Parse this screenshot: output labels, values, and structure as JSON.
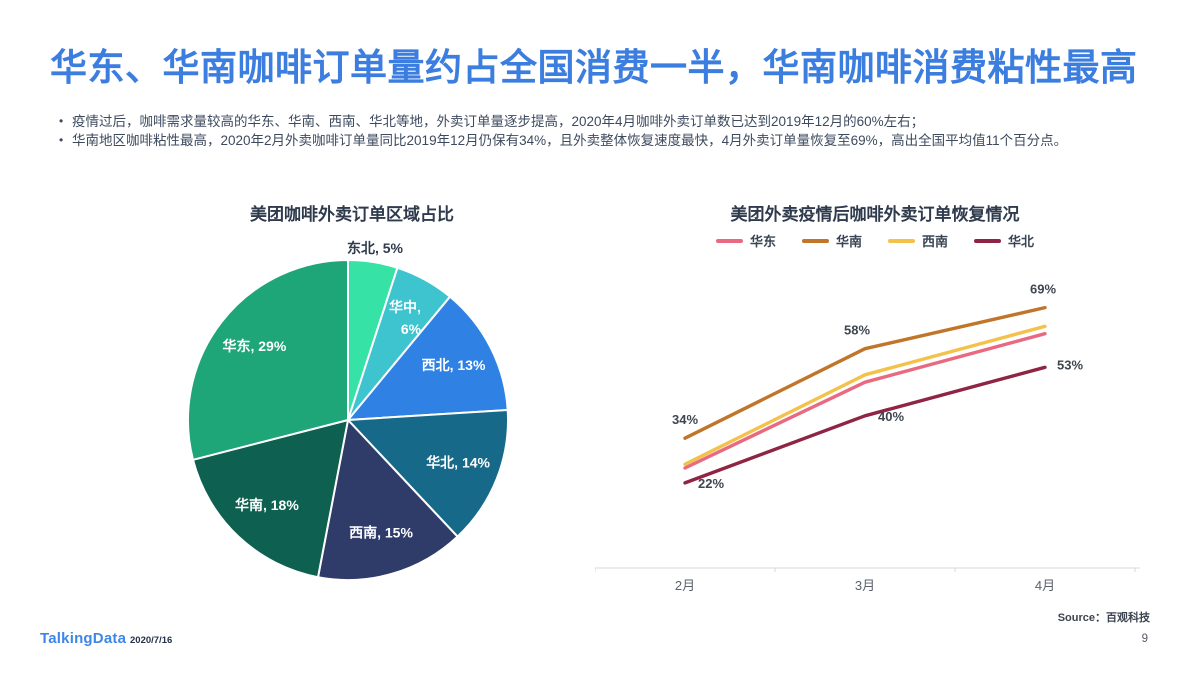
{
  "slide": {
    "title": "华东、华南咖啡订单量约占全国消费一半，华南咖啡消费粘性最高",
    "title_color": "#3C7EDF",
    "bullets": [
      "疫情过后，咖啡需求量较高的华东、华南、西南、华北等地，外卖订单量逐步提高，2020年4月咖啡外卖订单数已达到2019年12月的60%左右；",
      "华南地区咖啡粘性最高，2020年2月外卖咖啡订单量同比2019年12月仍保有34%，且外卖整体恢复速度最快，4月外卖订单量恢复至69%，高出全国平均值11个百分点。"
    ],
    "footer": {
      "logo": "TalkingData",
      "date": "2020/7/16",
      "source": "Source：百观科技",
      "page": "9"
    }
  },
  "chart_data": [
    {
      "type": "pie",
      "title": "美团咖啡外卖订单区域占比",
      "start_angle": "top",
      "direction": "clockwise",
      "label_format": "{name}, {value}%",
      "slices": [
        {
          "name": "东北",
          "value": 5,
          "color": "#36E2A5",
          "label_outside": true
        },
        {
          "name": "华中",
          "value": 6,
          "color": "#3EC4CF",
          "wrap": true
        },
        {
          "name": "西北",
          "value": 13,
          "color": "#2F82E4"
        },
        {
          "name": "华北",
          "value": 14,
          "color": "#17698A"
        },
        {
          "name": "西南",
          "value": 15,
          "color": "#2F3C6A"
        },
        {
          "name": "华南",
          "value": 18,
          "color": "#0E6051"
        },
        {
          "name": "华东",
          "value": 29,
          "color": "#1FA678"
        }
      ]
    },
    {
      "type": "line",
      "title": "美团外卖疫情后咖啡外卖订单恢复情况",
      "categories": [
        "2月",
        "3月",
        "4月"
      ],
      "unit": "%",
      "ylim": [
        0,
        80
      ],
      "grid": false,
      "legend_position": "top",
      "legend": [
        "华东",
        "华南",
        "西南",
        "华北"
      ],
      "series": [
        {
          "name": "华东",
          "color": "#E96A80",
          "values": [
            26,
            49,
            62
          ]
        },
        {
          "name": "华南",
          "color": "#C17529",
          "values": [
            34,
            58,
            69
          ],
          "labels": [
            {
              "dx": 0,
              "dy": -14
            },
            {
              "dx": -8,
              "dy": -14
            },
            {
              "dx": -2,
              "dy": -14
            }
          ]
        },
        {
          "name": "西南",
          "color": "#F3C24B",
          "values": [
            27,
            51,
            64
          ]
        },
        {
          "name": "华北",
          "color": "#8F2444",
          "values": [
            22,
            40,
            53
          ],
          "labels": [
            {
              "dx": 26,
              "dy": 5
            },
            {
              "dx": 26,
              "dy": 5
            },
            {
              "dx": 25,
              "dy": 2
            }
          ]
        }
      ]
    }
  ]
}
